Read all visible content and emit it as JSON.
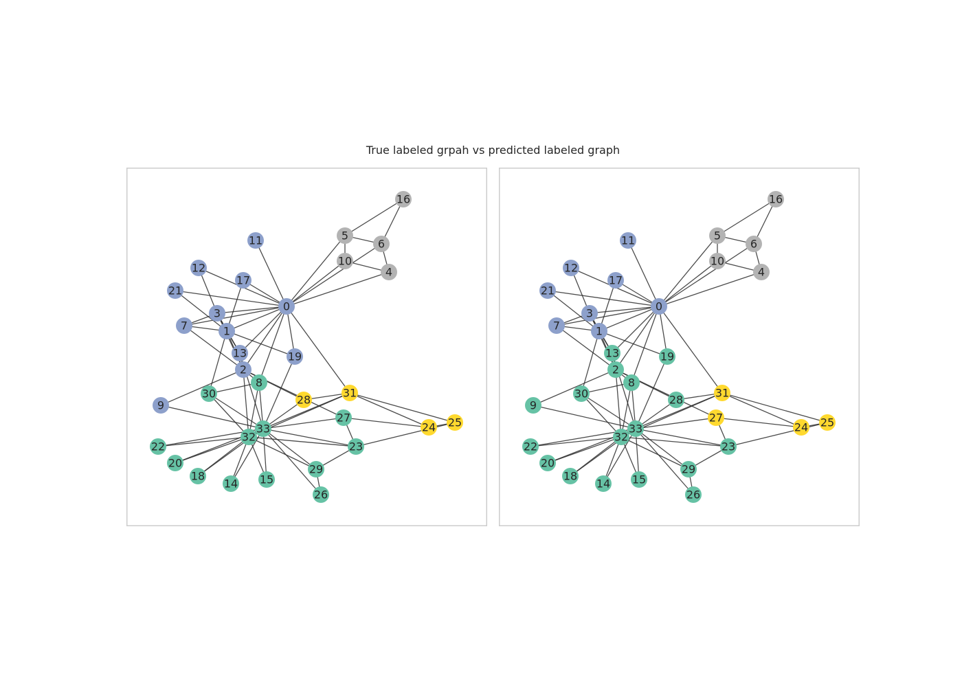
{
  "title": "True labeled grpah vs predicted labeled graph",
  "colors": {
    "blue": "#8da0cb",
    "gray": "#b3b3b3",
    "green": "#66c2a5",
    "yellow": "#ffd92f",
    "edge": "#2b2b2b",
    "frame": "#cccccc"
  },
  "nodes": [
    "0",
    "1",
    "2",
    "3",
    "4",
    "5",
    "6",
    "7",
    "8",
    "9",
    "10",
    "11",
    "12",
    "13",
    "14",
    "15",
    "16",
    "17",
    "18",
    "19",
    "20",
    "21",
    "22",
    "23",
    "24",
    "25",
    "26",
    "27",
    "28",
    "29",
    "30",
    "31",
    "32",
    "33"
  ],
  "edges": [
    [
      0,
      1
    ],
    [
      0,
      2
    ],
    [
      0,
      3
    ],
    [
      0,
      4
    ],
    [
      0,
      5
    ],
    [
      0,
      6
    ],
    [
      0,
      7
    ],
    [
      0,
      8
    ],
    [
      0,
      10
    ],
    [
      0,
      11
    ],
    [
      0,
      12
    ],
    [
      0,
      13
    ],
    [
      0,
      17
    ],
    [
      0,
      19
    ],
    [
      0,
      21
    ],
    [
      0,
      31
    ],
    [
      1,
      2
    ],
    [
      1,
      3
    ],
    [
      1,
      7
    ],
    [
      1,
      13
    ],
    [
      1,
      17
    ],
    [
      1,
      19
    ],
    [
      1,
      21
    ],
    [
      1,
      30
    ],
    [
      2,
      3
    ],
    [
      2,
      7
    ],
    [
      2,
      8
    ],
    [
      2,
      9
    ],
    [
      2,
      13
    ],
    [
      2,
      27
    ],
    [
      2,
      28
    ],
    [
      2,
      32
    ],
    [
      3,
      7
    ],
    [
      3,
      12
    ],
    [
      3,
      13
    ],
    [
      4,
      6
    ],
    [
      4,
      10
    ],
    [
      5,
      6
    ],
    [
      5,
      10
    ],
    [
      5,
      16
    ],
    [
      6,
      16
    ],
    [
      8,
      30
    ],
    [
      8,
      32
    ],
    [
      8,
      33
    ],
    [
      9,
      33
    ],
    [
      13,
      33
    ],
    [
      14,
      32
    ],
    [
      14,
      33
    ],
    [
      15,
      32
    ],
    [
      15,
      33
    ],
    [
      18,
      32
    ],
    [
      18,
      33
    ],
    [
      19,
      33
    ],
    [
      20,
      32
    ],
    [
      20,
      33
    ],
    [
      22,
      32
    ],
    [
      22,
      33
    ],
    [
      23,
      25
    ],
    [
      23,
      27
    ],
    [
      23,
      29
    ],
    [
      23,
      32
    ],
    [
      23,
      33
    ],
    [
      24,
      25
    ],
    [
      24,
      27
    ],
    [
      24,
      31
    ],
    [
      25,
      31
    ],
    [
      26,
      29
    ],
    [
      26,
      33
    ],
    [
      27,
      33
    ],
    [
      28,
      31
    ],
    [
      28,
      33
    ],
    [
      29,
      32
    ],
    [
      29,
      33
    ],
    [
      30,
      32
    ],
    [
      30,
      33
    ],
    [
      31,
      32
    ],
    [
      31,
      33
    ],
    [
      32,
      33
    ]
  ],
  "panels": [
    {
      "name": "true-labeled-graph",
      "node_groups": [
        "blue",
        "blue",
        "blue",
        "blue",
        "gray",
        "gray",
        "gray",
        "blue",
        "green",
        "blue",
        "gray",
        "blue",
        "blue",
        "blue",
        "green",
        "green",
        "gray",
        "blue",
        "green",
        "blue",
        "green",
        "blue",
        "green",
        "green",
        "yellow",
        "yellow",
        "green",
        "green",
        "yellow",
        "green",
        "green",
        "yellow",
        "green",
        "green"
      ]
    },
    {
      "name": "predicted-labeled-graph",
      "node_groups": [
        "blue",
        "blue",
        "green",
        "blue",
        "gray",
        "gray",
        "gray",
        "blue",
        "green",
        "green",
        "gray",
        "blue",
        "blue",
        "green",
        "green",
        "green",
        "gray",
        "blue",
        "green",
        "green",
        "green",
        "blue",
        "green",
        "green",
        "yellow",
        "yellow",
        "green",
        "yellow",
        "green",
        "green",
        "green",
        "yellow",
        "green",
        "green"
      ]
    }
  ]
}
